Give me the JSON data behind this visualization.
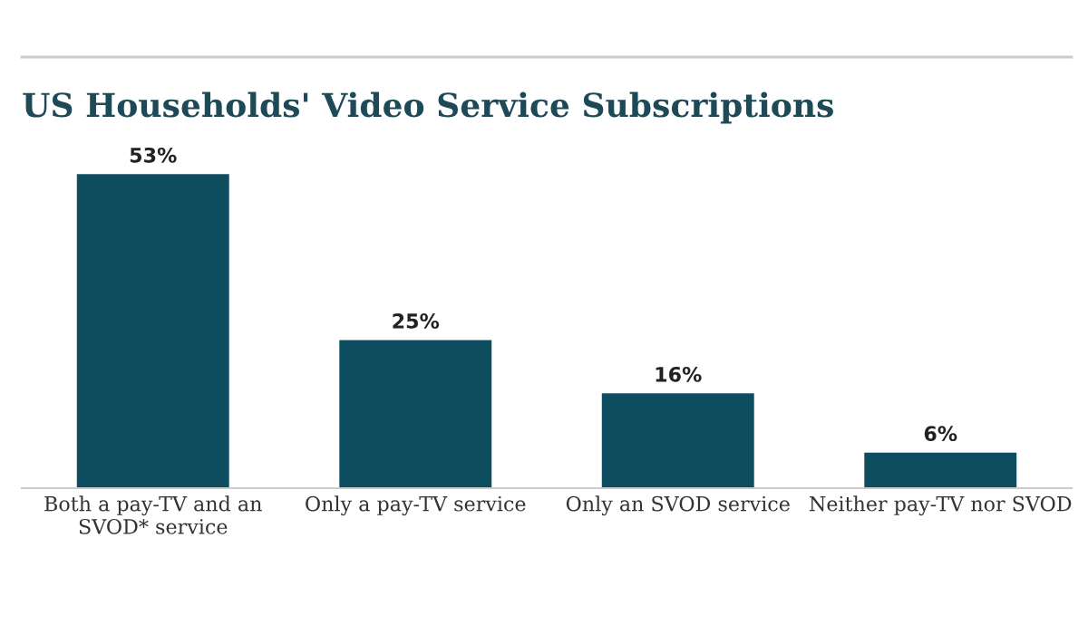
{
  "chart_data": {
    "type": "bar",
    "title": "US Households' Video Service Subscriptions",
    "categories": [
      "Both a pay-TV and an\nSVOD* service",
      "Only a pay-TV service",
      "Only an SVOD service",
      "Neither pay-TV nor SVOD"
    ],
    "values": [
      53,
      25,
      16,
      6
    ],
    "value_labels": [
      "53%",
      "25%",
      "16%",
      "6%"
    ],
    "color": "#0e4d60",
    "grid": false,
    "legend": false
  }
}
